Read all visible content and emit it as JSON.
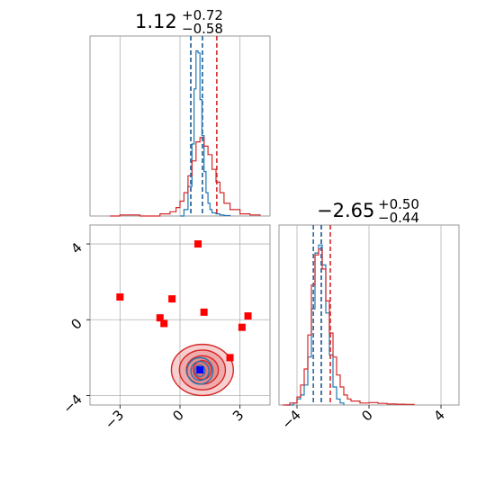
{
  "chart_data": [
    {
      "panel": "top-left",
      "type": "histogram",
      "title": "1.12",
      "title_sup": "+0.72",
      "title_sub": "−0.58",
      "xlim": [
        -4.5,
        4.5
      ],
      "grid": true,
      "series": [
        {
          "color": "#1f77b4",
          "x": [
            0.0,
            0.2,
            0.4,
            0.6,
            0.7,
            0.8,
            0.9,
            1.0,
            1.1,
            1.2,
            1.3,
            1.4,
            1.5,
            1.6,
            1.8,
            2.0,
            2.2,
            2.5
          ],
          "y": [
            0.0,
            0.03,
            0.14,
            0.34,
            0.6,
            0.78,
            0.77,
            0.55,
            0.38,
            0.21,
            0.11,
            0.06,
            0.03,
            0.015,
            0.01,
            0.005,
            0.002,
            0.0
          ]
        },
        {
          "color": "#d62728",
          "x": [
            -3.5,
            -3.0,
            -2.5,
            -2.0,
            -1.5,
            -1.0,
            -0.5,
            -0.2,
            0.0,
            0.2,
            0.4,
            0.6,
            0.8,
            1.0,
            1.2,
            1.4,
            1.6,
            1.8,
            2.0,
            2.2,
            2.5,
            3.0,
            3.5,
            4.0
          ],
          "y": [
            0.0,
            0.005,
            0.005,
            0.0,
            0.0,
            0.01,
            0.02,
            0.04,
            0.07,
            0.11,
            0.19,
            0.26,
            0.35,
            0.37,
            0.33,
            0.29,
            0.22,
            0.16,
            0.11,
            0.06,
            0.03,
            0.01,
            0.005,
            0.0
          ]
        }
      ],
      "quantiles": [
        {
          "color": "#d62728",
          "values": [
            0.54,
            1.12,
            1.84
          ]
        },
        {
          "color": "#1f77b4",
          "values": [
            0.54,
            1.12
          ]
        }
      ]
    },
    {
      "panel": "bottom-right",
      "type": "histogram",
      "title": "−2.65",
      "title_sup": "+0.50",
      "title_sub": "−0.44",
      "xlim": [
        -5,
        5
      ],
      "xticks": [
        -4,
        0,
        4
      ],
      "grid": true,
      "series": [
        {
          "color": "#1f77b4",
          "x": [
            -4.6,
            -4.2,
            -4.0,
            -3.8,
            -3.6,
            -3.4,
            -3.2,
            -3.0,
            -2.8,
            -2.6,
            -2.4,
            -2.2,
            -2.0,
            -1.8,
            -1.6,
            -1.4
          ],
          "y": [
            0.0,
            0.01,
            0.03,
            0.05,
            0.1,
            0.24,
            0.48,
            0.76,
            0.8,
            0.7,
            0.46,
            0.25,
            0.09,
            0.03,
            0.01,
            0.0
          ]
        },
        {
          "color": "#d62728",
          "x": [
            -4.8,
            -4.4,
            -4.0,
            -3.8,
            -3.6,
            -3.4,
            -3.2,
            -3.0,
            -2.8,
            -2.6,
            -2.4,
            -2.2,
            -2.0,
            -1.8,
            -1.6,
            -1.4,
            -1.2,
            -1.0,
            -0.5,
            0.0,
            0.5,
            1.0,
            1.5,
            2.0,
            2.5
          ],
          "y": [
            0.0,
            0.01,
            0.04,
            0.1,
            0.18,
            0.35,
            0.6,
            0.75,
            0.78,
            0.68,
            0.52,
            0.36,
            0.24,
            0.15,
            0.09,
            0.05,
            0.03,
            0.02,
            0.01,
            0.012,
            0.008,
            0.005,
            0.004,
            0.003,
            0.0
          ]
        }
      ],
      "quantiles": [
        {
          "color": "#d62728",
          "values": [
            -3.09,
            -2.65,
            -2.15
          ]
        },
        {
          "color": "#1f77b4",
          "values": [
            -3.09,
            -2.65
          ]
        }
      ]
    },
    {
      "panel": "bottom-left",
      "type": "scatter",
      "xlim": [
        -4.5,
        4.5
      ],
      "ylim": [
        -4.5,
        5.0
      ],
      "xticks": [
        -3,
        0,
        3
      ],
      "yticks": [
        -4,
        0,
        4
      ],
      "grid": true,
      "contours": [
        {
          "color": "#d62728",
          "cx": 1.12,
          "cy": -2.65,
          "rx": [
            0.45,
            0.8,
            1.15,
            1.55
          ],
          "ry": [
            0.5,
            0.75,
            1.05,
            1.35
          ]
        },
        {
          "color": "#1f77b4",
          "cx": 1.0,
          "cy": -2.7,
          "rx": [
            0.25,
            0.45,
            0.65
          ],
          "ry": [
            0.3,
            0.5,
            0.7
          ]
        }
      ],
      "markers": {
        "color": "#ff0000",
        "points": [
          [
            -3.0,
            1.2
          ],
          [
            0.9,
            4.0
          ],
          [
            -0.4,
            1.1
          ],
          [
            1.2,
            0.4
          ],
          [
            -1.0,
            0.1
          ],
          [
            -0.8,
            -0.2
          ],
          [
            3.4,
            0.2
          ],
          [
            3.1,
            -0.4
          ],
          [
            2.5,
            -2.0
          ]
        ]
      },
      "truth": {
        "color": "#0000ff",
        "point": [
          1.0,
          -2.65
        ]
      }
    }
  ]
}
